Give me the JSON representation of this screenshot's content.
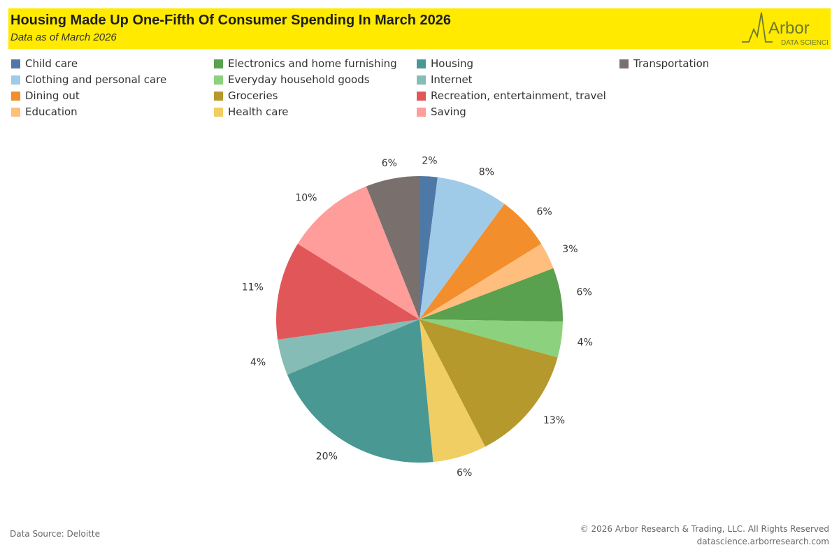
{
  "header": {
    "title": "Housing Made Up One-Fifth Of Consumer Spending In March 2026",
    "subtitle": "Data as of March 2026",
    "logo_text": "Arbor",
    "logo_subtext": "DATA SCIENCE",
    "background": "#ffea00"
  },
  "chart_data": {
    "type": "pie",
    "start_angle_deg": 0,
    "direction": "clockwise",
    "slices": [
      {
        "label": "Child care",
        "value": 2,
        "display": "2%",
        "color": "#4e79a7"
      },
      {
        "label": "Clothing and personal care",
        "value": 8,
        "display": "8%",
        "color": "#a0cbe8"
      },
      {
        "label": "Dining out",
        "value": 6,
        "display": "6%",
        "color": "#f28e2b"
      },
      {
        "label": "Education",
        "value": 3,
        "display": "3%",
        "color": "#ffbe7d"
      },
      {
        "label": "Electronics and home furnishing",
        "value": 6,
        "display": "6%",
        "color": "#59a14f"
      },
      {
        "label": "Everyday household goods",
        "value": 4,
        "display": "4%",
        "color": "#8cd17d"
      },
      {
        "label": "Groceries",
        "value": 13,
        "display": "13%",
        "color": "#b6992d"
      },
      {
        "label": "Health care",
        "value": 6,
        "display": "6%",
        "color": "#f1ce63"
      },
      {
        "label": "Housing",
        "value": 20,
        "display": "20%",
        "color": "#499894"
      },
      {
        "label": "Internet",
        "value": 4,
        "display": "4%",
        "color": "#86bcb6"
      },
      {
        "label": "Recreation, entertainment, travel",
        "value": 11,
        "display": "11%",
        "color": "#e15759"
      },
      {
        "label": "Saving",
        "value": 10,
        "display": "10%",
        "color": "#ff9d9a"
      },
      {
        "label": "Transportation",
        "value": 6,
        "display": "6%",
        "color": "#79706e"
      }
    ],
    "legend": {
      "placement": "top",
      "columns": 4,
      "order": [
        "Child care",
        "Clothing and personal care",
        "Dining out",
        "Education",
        "Electronics and home furnishing",
        "Everyday household goods",
        "Groceries",
        "Health care",
        "Housing",
        "Internet",
        "Recreation, entertainment, travel",
        "Saving",
        "Transportation"
      ]
    }
  },
  "footer": {
    "source": "Data Source: Deloitte",
    "copyright": "© 2026 Arbor Research & Trading, LLC. All Rights Reserved",
    "website": "datascience.arborresearch.com"
  }
}
